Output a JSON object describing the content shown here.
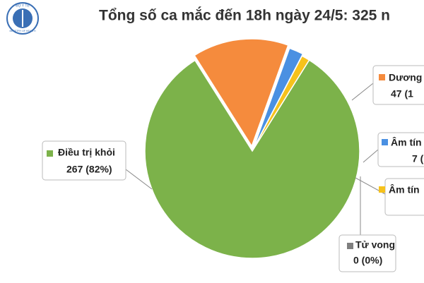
{
  "logo": {
    "top": "BỘ Y TẾ",
    "bottom": "MINISTRY OF HEALTH"
  },
  "chart_data": {
    "type": "pie",
    "title": "Tổng số ca mắc đến 18h ngày 24/5: 325 n",
    "categories": [
      "Điều trị khỏi",
      "Dương",
      "Âm tín",
      "Âm tín",
      "Tử vong"
    ],
    "values": [
      267,
      47,
      7,
      4,
      0
    ],
    "value_labels": [
      "267 (82%)",
      "47 (1",
      "7 (",
      null,
      "0 (0%)"
    ],
    "colors": [
      "#7cb24a",
      "#f58b3d",
      "#4a90e2",
      "#f6c21c",
      "#7f7f7f"
    ]
  }
}
